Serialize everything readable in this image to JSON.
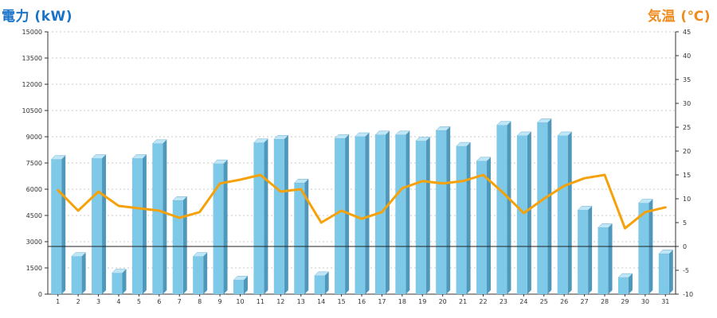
{
  "chart_data": {
    "type": "bar",
    "left_axis_title": "電力 (kW)",
    "right_axis_title": "気温 (℃)",
    "categories": [
      "1",
      "2",
      "3",
      "4",
      "5",
      "6",
      "7",
      "8",
      "9",
      "10",
      "11",
      "12",
      "13",
      "14",
      "15",
      "16",
      "17",
      "18",
      "19",
      "20",
      "21",
      "22",
      "23",
      "24",
      "25",
      "26",
      "27",
      "28",
      "29",
      "30",
      "31"
    ],
    "series": [
      {
        "axis": "left",
        "type": "bar",
        "color": "#7ec8e8",
        "values": [
          7700,
          2150,
          7750,
          1200,
          7750,
          8600,
          5350,
          2150,
          7450,
          800,
          8650,
          8850,
          6350,
          1050,
          8900,
          9000,
          9100,
          9100,
          8750,
          9350,
          8450,
          7600,
          9650,
          9050,
          9800,
          9050,
          4800,
          3800,
          950,
          5200,
          2300
        ]
      },
      {
        "axis": "right",
        "type": "line",
        "color": "#f5a20a",
        "values": [
          11.8,
          7.5,
          11.5,
          8.5,
          8.0,
          7.5,
          6.0,
          7.2,
          13.2,
          14.0,
          15.0,
          11.5,
          12.0,
          5.0,
          7.5,
          5.8,
          7.2,
          12.2,
          13.7,
          13.2,
          13.7,
          15.0,
          11.2,
          7.0,
          10.0,
          12.7,
          14.3,
          15.0,
          3.8,
          7.2,
          8.2
        ]
      }
    ],
    "y_left": {
      "min": 0,
      "max": 15000,
      "ticks": [
        0,
        1500,
        3000,
        4500,
        6000,
        7500,
        9000,
        10500,
        12000,
        13500,
        15000
      ]
    },
    "y_right": {
      "min": -10,
      "max": 45,
      "ticks": [
        -10,
        -5,
        0,
        5,
        10,
        15,
        20,
        25,
        30,
        35,
        40,
        45
      ]
    },
    "reference_line_right_value": 0,
    "grid": true,
    "legend": "none"
  }
}
